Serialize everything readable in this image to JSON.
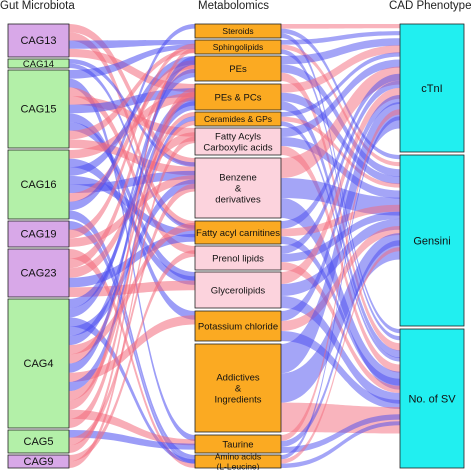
{
  "columns": {
    "left_title": "Gut Microbiota",
    "middle_title": "Metabolomics",
    "right_title": "CAD Phenotype"
  },
  "colors": {
    "positive_link": "#f36a7c",
    "negative_link": "#4a4cf0",
    "microbiota_purple": "#d8a8e8",
    "microbiota_green": "#b3f0a8",
    "metabolite_orange": "#fbaa22",
    "metabolite_pink": "#fcd3dd",
    "phenotype_cyan": "#21eff0"
  },
  "microbiota": [
    {
      "label": "CAG13",
      "fill": "#d8a8e8"
    },
    {
      "label": "CAG14",
      "fill": "#b3f0a8"
    },
    {
      "label": "CAG15",
      "fill": "#b3f0a8"
    },
    {
      "label": "CAG16",
      "fill": "#b3f0a8"
    },
    {
      "label": "CAG19",
      "fill": "#d8a8e8"
    },
    {
      "label": "CAG23",
      "fill": "#d8a8e8"
    },
    {
      "label": "CAG4",
      "fill": "#b3f0a8"
    },
    {
      "label": "CAG5",
      "fill": "#b3f0a8"
    },
    {
      "label": "CAG9",
      "fill": "#d8a8e8"
    }
  ],
  "metabolites": [
    {
      "lines": [
        "Steroids"
      ],
      "fill": "#fbaa22"
    },
    {
      "lines": [
        "Sphingolipids"
      ],
      "fill": "#fbaa22"
    },
    {
      "lines": [
        "PEs"
      ],
      "fill": "#fbaa22"
    },
    {
      "lines": [
        "PEs & PCs"
      ],
      "fill": "#fbaa22"
    },
    {
      "lines": [
        "Ceramides & GPs"
      ],
      "fill": "#fbaa22"
    },
    {
      "lines": [
        "Fatty Acyls",
        "Carboxylic acids"
      ],
      "fill": "#fcd3dd"
    },
    {
      "lines": [
        "Benzene",
        "&",
        "derivatives"
      ],
      "fill": "#fcd3dd"
    },
    {
      "lines": [
        "Fatty acyl carnitines"
      ],
      "fill": "#fbaa22"
    },
    {
      "lines": [
        "Prenol lipids"
      ],
      "fill": "#fcd3dd"
    },
    {
      "lines": [
        "Glycerolipids"
      ],
      "fill": "#fcd3dd"
    },
    {
      "lines": [
        "Potassium chloride"
      ],
      "fill": "#fbaa22"
    },
    {
      "lines": [
        "Addictives",
        "&",
        "Ingredients"
      ],
      "fill": "#fbaa22"
    },
    {
      "lines": [
        "Taurine"
      ],
      "fill": "#fbaa22"
    },
    {
      "lines": [
        "Amino acids",
        "(L-Leucine)"
      ],
      "fill": "#fbaa22"
    }
  ],
  "phenotypes": [
    {
      "label": "cTnI"
    },
    {
      "label": "Gensini"
    },
    {
      "label": "No. of SV"
    }
  ]
}
